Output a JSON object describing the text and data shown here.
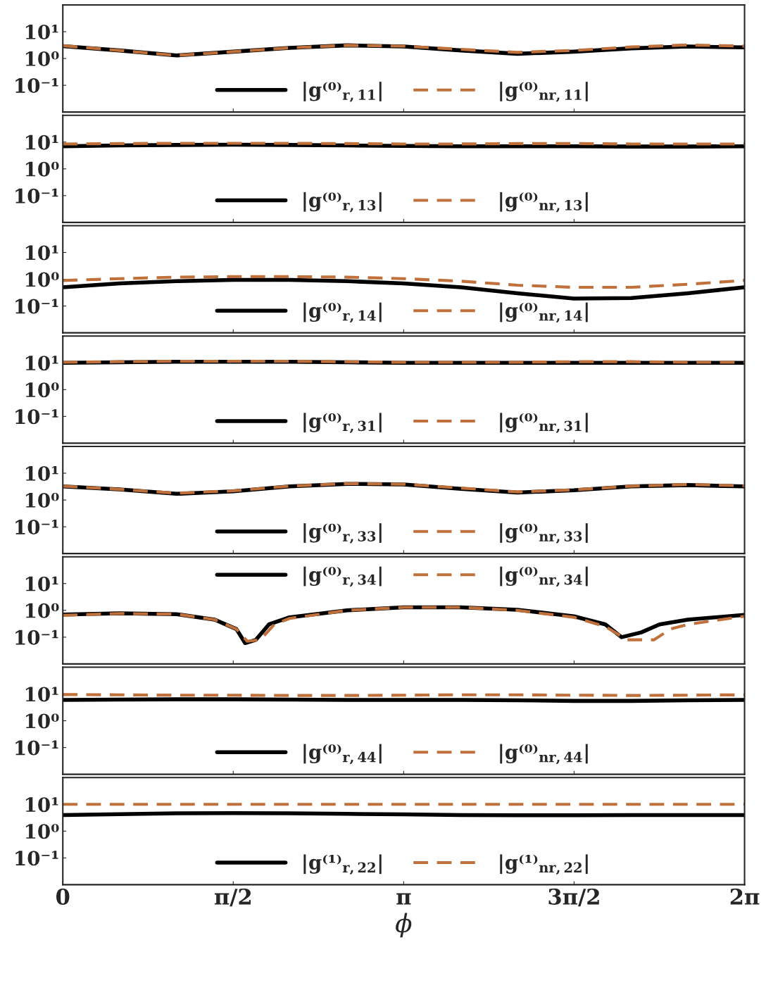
{
  "chart_data": [
    {
      "type": "line",
      "x": [
        0,
        0.52,
        1.05,
        1.57,
        2.09,
        2.62,
        3.14,
        3.67,
        4.19,
        4.71,
        5.24,
        5.76,
        6.28
      ],
      "xlim": [
        0,
        6.2832
      ],
      "xticks": [
        {
          "value": 0,
          "label": null
        },
        {
          "value": 1.5708,
          "label": null
        },
        {
          "value": 3.1416,
          "label": null
        },
        {
          "value": 4.7124,
          "label": null
        },
        {
          "value": 6.2832,
          "label": null
        }
      ],
      "log": true,
      "ylim": [
        0.01,
        100
      ],
      "yticks": [
        {
          "value": 0.1,
          "label": "10⁻¹"
        },
        {
          "value": 1,
          "label": "10⁰"
        },
        {
          "value": 10,
          "label": "10¹"
        }
      ],
      "tick_labels": "y",
      "legend": "bottom",
      "series": [
        {
          "name": "|g⁽⁰⁾$_{r,11}$|",
          "color": "#000000",
          "line_style": "solid",
          "values": [
            2.9,
            2.0,
            1.3,
            1.8,
            2.5,
            3.1,
            2.8,
            2.0,
            1.5,
            1.8,
            2.4,
            2.8,
            2.6
          ]
        },
        {
          "name": "|g⁽⁰⁾$_{nr,11}$|",
          "color": "#c0703a",
          "line_style": "dashed",
          "values": [
            3.0,
            2.0,
            1.3,
            1.8,
            2.5,
            3.1,
            2.9,
            2.2,
            1.7,
            2.0,
            2.7,
            3.2,
            2.9
          ]
        }
      ]
    },
    {
      "type": "line",
      "x": [
        0,
        0.52,
        1.05,
        1.57,
        2.09,
        2.62,
        3.14,
        3.67,
        4.19,
        4.71,
        5.24,
        5.76,
        6.28
      ],
      "xlim": [
        0,
        6.2832
      ],
      "xticks": [
        {
          "value": 0,
          "label": null
        },
        {
          "value": 1.5708,
          "label": null
        },
        {
          "value": 3.1416,
          "label": null
        },
        {
          "value": 4.7124,
          "label": null
        },
        {
          "value": 6.2832,
          "label": null
        }
      ],
      "log": true,
      "ylim": [
        0.01,
        100
      ],
      "yticks": [
        {
          "value": 0.1,
          "label": "10⁻¹"
        },
        {
          "value": 1,
          "label": "10⁰"
        },
        {
          "value": 10,
          "label": "10¹"
        }
      ],
      "tick_labels": "y",
      "legend": "bottom",
      "series": [
        {
          "name": "|g⁽⁰⁾$_{r,13}$|",
          "color": "#000000",
          "line_style": "solid",
          "values": [
            7.0,
            7.5,
            7.8,
            8.0,
            7.8,
            7.5,
            7.2,
            7.0,
            7.0,
            7.0,
            6.8,
            6.8,
            7.0
          ]
        },
        {
          "name": "|g⁽⁰⁾$_{nr,13}$|",
          "color": "#c0703a",
          "line_style": "dashed",
          "values": [
            8.5,
            8.8,
            9.0,
            9.0,
            9.0,
            8.8,
            8.5,
            8.5,
            8.8,
            8.8,
            8.5,
            8.5,
            8.5
          ]
        }
      ]
    },
    {
      "type": "line",
      "x": [
        0,
        0.52,
        1.05,
        1.57,
        2.09,
        2.62,
        3.14,
        3.67,
        4.19,
        4.71,
        5.24,
        5.76,
        6.28
      ],
      "xlim": [
        0,
        6.2832
      ],
      "xticks": [
        {
          "value": 0,
          "label": null
        },
        {
          "value": 1.5708,
          "label": null
        },
        {
          "value": 3.1416,
          "label": null
        },
        {
          "value": 4.7124,
          "label": null
        },
        {
          "value": 6.2832,
          "label": null
        }
      ],
      "log": true,
      "ylim": [
        0.01,
        100
      ],
      "yticks": [
        {
          "value": 0.1,
          "label": "10⁻¹"
        },
        {
          "value": 1,
          "label": "10⁰"
        },
        {
          "value": 10,
          "label": "10¹"
        }
      ],
      "tick_labels": "y",
      "legend": "bottom",
      "series": [
        {
          "name": "|g⁽⁰⁾$_{r,14}$|",
          "color": "#000000",
          "line_style": "solid",
          "values": [
            0.5,
            0.7,
            0.85,
            0.95,
            0.95,
            0.85,
            0.7,
            0.5,
            0.3,
            0.19,
            0.2,
            0.3,
            0.5
          ]
        },
        {
          "name": "|g⁽⁰⁾$_{nr,14}$|",
          "color": "#c0703a",
          "line_style": "dashed",
          "values": [
            0.9,
            1.05,
            1.2,
            1.25,
            1.25,
            1.2,
            1.05,
            0.85,
            0.6,
            0.5,
            0.5,
            0.65,
            0.9
          ]
        }
      ]
    },
    {
      "type": "line",
      "x": [
        0,
        0.52,
        1.05,
        1.57,
        2.09,
        2.62,
        3.14,
        3.67,
        4.19,
        4.71,
        5.24,
        5.76,
        6.28
      ],
      "xlim": [
        0,
        6.2832
      ],
      "xticks": [
        {
          "value": 0,
          "label": null
        },
        {
          "value": 1.5708,
          "label": null
        },
        {
          "value": 3.1416,
          "label": null
        },
        {
          "value": 4.7124,
          "label": null
        },
        {
          "value": 6.2832,
          "label": null
        }
      ],
      "log": true,
      "ylim": [
        0.01,
        100
      ],
      "yticks": [
        {
          "value": 0.1,
          "label": "10⁻¹"
        },
        {
          "value": 1,
          "label": "10⁰"
        },
        {
          "value": 10,
          "label": "10¹"
        }
      ],
      "tick_labels": "y",
      "legend": "bottom",
      "series": [
        {
          "name": "|g⁽⁰⁾$_{r,31}$|",
          "color": "#000000",
          "line_style": "solid",
          "values": [
            10,
            10.5,
            11,
            11,
            11,
            10.5,
            10,
            10,
            10,
            10,
            10,
            10,
            10
          ]
        },
        {
          "name": "|g⁽⁰⁾$_{nr,31}$|",
          "color": "#c0703a",
          "line_style": "dashed",
          "values": [
            10.5,
            11,
            11.5,
            11.5,
            11.5,
            11,
            10.5,
            10.5,
            10.5,
            11,
            11,
            10.5,
            10.5
          ]
        }
      ]
    },
    {
      "type": "line",
      "x": [
        0,
        0.52,
        1.05,
        1.57,
        2.09,
        2.62,
        3.14,
        3.67,
        4.19,
        4.71,
        5.24,
        5.76,
        6.28
      ],
      "xlim": [
        0,
        6.2832
      ],
      "xticks": [
        {
          "value": 0,
          "label": null
        },
        {
          "value": 1.5708,
          "label": null
        },
        {
          "value": 3.1416,
          "label": null
        },
        {
          "value": 4.7124,
          "label": null
        },
        {
          "value": 6.2832,
          "label": null
        }
      ],
      "log": true,
      "ylim": [
        0.01,
        100
      ],
      "yticks": [
        {
          "value": 0.1,
          "label": "10⁻¹"
        },
        {
          "value": 1,
          "label": "10⁰"
        },
        {
          "value": 10,
          "label": "10¹"
        }
      ],
      "tick_labels": "y",
      "legend": "bottom",
      "series": [
        {
          "name": "|g⁽⁰⁾$_{r,33}$|",
          "color": "#000000",
          "line_style": "solid",
          "values": [
            3.2,
            2.5,
            1.7,
            2.1,
            3.2,
            4.0,
            3.8,
            2.6,
            1.9,
            2.3,
            3.2,
            3.6,
            3.2
          ]
        },
        {
          "name": "|g⁽⁰⁾$_{nr,33}$|",
          "color": "#c0703a",
          "line_style": "dashed",
          "values": [
            3.3,
            2.5,
            1.8,
            2.2,
            3.3,
            4.1,
            3.9,
            2.8,
            2.0,
            2.4,
            3.3,
            3.8,
            3.4
          ]
        }
      ]
    },
    {
      "type": "line",
      "xlim": [
        0,
        6.2832
      ],
      "xticks": [
        {
          "value": 0,
          "label": null
        },
        {
          "value": 1.5708,
          "label": null
        },
        {
          "value": 3.1416,
          "label": null
        },
        {
          "value": 4.7124,
          "label": null
        },
        {
          "value": 6.2832,
          "label": null
        }
      ],
      "log": true,
      "ylim": [
        0.01,
        100
      ],
      "yticks": [
        {
          "value": 0.1,
          "label": "10⁻¹"
        },
        {
          "value": 1,
          "label": "10⁰"
        },
        {
          "value": 10,
          "label": "10¹"
        }
      ],
      "tick_labels": "y",
      "legend": "top",
      "series": [
        {
          "name": "|g⁽⁰⁾$_{r,34}$|",
          "color": "#000000",
          "line_style": "solid",
          "x": [
            0,
            0.52,
            1.05,
            1.4,
            1.6,
            1.68,
            1.73,
            1.78,
            1.9,
            2.09,
            2.62,
            3.14,
            3.67,
            4.19,
            4.71,
            5.0,
            5.15,
            5.26,
            5.33,
            5.5,
            5.76,
            6.28
          ],
          "values": [
            0.7,
            0.78,
            0.72,
            0.45,
            0.2,
            0.06,
            null,
            0.08,
            0.3,
            0.55,
            1.0,
            1.3,
            1.3,
            1.05,
            0.6,
            0.3,
            0.1,
            null,
            0.15,
            0.3,
            0.45,
            0.68
          ]
        },
        {
          "name": "|g⁽⁰⁾$_{nr,34}$|",
          "color": "#c0703a",
          "line_style": "dashed",
          "x": [
            0,
            0.52,
            1.05,
            1.4,
            1.6,
            1.7,
            1.76,
            1.82,
            1.95,
            2.09,
            2.62,
            3.14,
            3.67,
            4.19,
            4.71,
            5.0,
            5.2,
            5.36,
            5.45,
            5.6,
            5.76,
            6.28
          ],
          "values": [
            0.65,
            0.76,
            0.72,
            0.45,
            0.2,
            0.07,
            null,
            0.08,
            0.3,
            0.5,
            1.0,
            1.3,
            1.3,
            1.0,
            0.55,
            0.25,
            0.08,
            null,
            0.08,
            0.2,
            0.3,
            0.6
          ]
        }
      ]
    },
    {
      "type": "line",
      "x": [
        0,
        0.52,
        1.05,
        1.57,
        2.09,
        2.62,
        3.14,
        3.67,
        4.19,
        4.71,
        5.24,
        5.76,
        6.28
      ],
      "xlim": [
        0,
        6.2832
      ],
      "xticks": [
        {
          "value": 0,
          "label": null
        },
        {
          "value": 1.5708,
          "label": null
        },
        {
          "value": 3.1416,
          "label": null
        },
        {
          "value": 4.7124,
          "label": null
        },
        {
          "value": 6.2832,
          "label": null
        }
      ],
      "log": true,
      "ylim": [
        0.01,
        100
      ],
      "yticks": [
        {
          "value": 0.1,
          "label": "10⁻¹"
        },
        {
          "value": 1,
          "label": "10⁰"
        },
        {
          "value": 10,
          "label": "10¹"
        }
      ],
      "tick_labels": "y",
      "legend": "bottom",
      "series": [
        {
          "name": "|g⁽⁰⁾$_{r,44}$|",
          "color": "#000000",
          "line_style": "solid",
          "values": [
            6.0,
            6.2,
            6.3,
            6.3,
            6.2,
            6.0,
            6.0,
            6.0,
            5.8,
            5.5,
            5.5,
            5.8,
            6.0
          ]
        },
        {
          "name": "|g⁽⁰⁾$_{nr,44}$|",
          "color": "#c0703a",
          "line_style": "dashed",
          "values": [
            9.5,
            9.3,
            9.0,
            9.0,
            8.8,
            8.8,
            9.0,
            9.3,
            9.3,
            9.0,
            8.8,
            9.0,
            9.3
          ]
        }
      ]
    },
    {
      "type": "line",
      "x": [
        0,
        0.52,
        1.05,
        1.57,
        2.09,
        2.62,
        3.14,
        3.67,
        4.19,
        4.71,
        5.24,
        5.76,
        6.28
      ],
      "xlim": [
        0,
        6.2832
      ],
      "xticks": [
        {
          "value": 0,
          "label": "0"
        },
        {
          "value": 1.5708,
          "label": "π/2"
        },
        {
          "value": 3.1416,
          "label": "π"
        },
        {
          "value": 4.7124,
          "label": "3π/2"
        },
        {
          "value": 6.2832,
          "label": "2π"
        }
      ],
      "log": true,
      "ylim": [
        0.01,
        100
      ],
      "yticks": [
        {
          "value": 0.1,
          "label": "10⁻¹"
        },
        {
          "value": 1,
          "label": "10⁰"
        },
        {
          "value": 10,
          "label": "10¹"
        }
      ],
      "xlabel": "ϕ",
      "legend": "bottom",
      "series": [
        {
          "name": "|g⁽¹⁾$_{r,22}$|",
          "color": "#000000",
          "line_style": "solid",
          "values": [
            4.0,
            4.3,
            4.6,
            4.7,
            4.6,
            4.4,
            4.2,
            4.0,
            3.9,
            3.9,
            4.0,
            4.0,
            4.0
          ]
        },
        {
          "name": "|g⁽¹⁾$_{nr,22}$|",
          "color": "#c0703a",
          "line_style": "dashed",
          "values": [
            10,
            10,
            10,
            10,
            10,
            10,
            10,
            10,
            10,
            10,
            10,
            10,
            10
          ]
        }
      ]
    }
  ]
}
